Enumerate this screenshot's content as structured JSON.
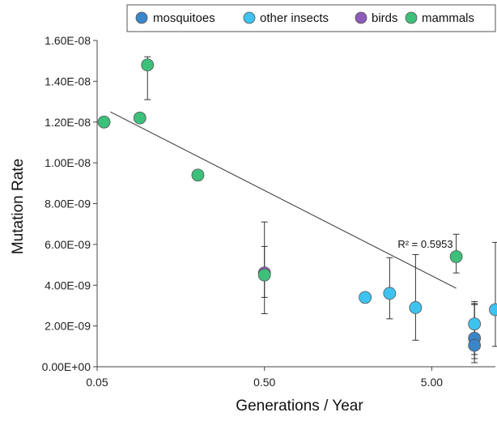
{
  "chart_data": {
    "type": "scatter",
    "xlabel": "Generations / Year",
    "ylabel": "Mutation Rate",
    "xscale": "log",
    "xlim": [
      0.05,
      12
    ],
    "ylim": [
      0,
      1.6e-08
    ],
    "x_ticks": [
      {
        "value": 0.05,
        "label": "0.05"
      },
      {
        "value": 0.5,
        "label": "0.50"
      },
      {
        "value": 5.0,
        "label": "5.00"
      }
    ],
    "y_ticks": [
      {
        "value": 0,
        "label": "0.00E+00"
      },
      {
        "value": 2e-09,
        "label": "2.00E-09"
      },
      {
        "value": 4e-09,
        "label": "4.00E-09"
      },
      {
        "value": 6e-09,
        "label": "6.00E-09"
      },
      {
        "value": 8e-09,
        "label": "8.00E-09"
      },
      {
        "value": 1e-08,
        "label": "1.00E-08"
      },
      {
        "value": 1.2e-08,
        "label": "1.20E-08"
      },
      {
        "value": 1.4e-08,
        "label": "1.40E-08"
      },
      {
        "value": 1.6e-08,
        "label": "1.60E-08"
      }
    ],
    "grid": false,
    "legend": "top",
    "series": [
      {
        "name": "mosquitoes",
        "color": "#3a86c8",
        "points": [
          {
            "x": 9.0,
            "y": 1.4e-09,
            "err_low": 1e-09,
            "err_high": 1.8e-09
          },
          {
            "x": 9.0,
            "y": 1.05e-09,
            "err_low": 8.5e-10,
            "err_high": 2e-09
          }
        ]
      },
      {
        "name": "other insects",
        "color": "#3ec3f0",
        "points": [
          {
            "x": 2.0,
            "y": 3.4e-09
          },
          {
            "x": 2.8,
            "y": 3.6e-09,
            "err_low": 1.25e-09,
            "err_high": 1.75e-09
          },
          {
            "x": 4.0,
            "y": 2.9e-09,
            "err_low": 1.6e-09,
            "err_high": 2.6e-09
          },
          {
            "x": 9.0,
            "y": 2.1e-09,
            "err_low": 1.5e-09,
            "err_high": 1e-09
          },
          {
            "x": 12.0,
            "y": 2.8e-09,
            "err_low": 1.8e-09,
            "err_high": 3.3e-09
          }
        ]
      },
      {
        "name": "birds",
        "color": "#8e5bb8",
        "points": [
          {
            "x": 0.5,
            "y": 4.6e-09,
            "err_low": 1.2e-09,
            "err_high": 1.3e-09
          }
        ]
      },
      {
        "name": "mammals",
        "color": "#3cc07a",
        "points": [
          {
            "x": 0.055,
            "y": 1.2e-08
          },
          {
            "x": 0.09,
            "y": 1.22e-08
          },
          {
            "x": 0.1,
            "y": 1.48e-08,
            "err_low": 1.7e-09,
            "err_high": 4e-10
          },
          {
            "x": 0.2,
            "y": 9.4e-09
          },
          {
            "x": 0.5,
            "y": 4.5e-09,
            "err_low": 1.9e-09,
            "err_high": 2.6e-09
          },
          {
            "x": 7.0,
            "y": 5.4e-09,
            "err_low": 8e-10,
            "err_high": 1.1e-09
          }
        ]
      }
    ],
    "trendline": {
      "x_start": 0.06,
      "y_start": 1.25e-08,
      "x_end": 7.0,
      "y_end": 3.85e-09
    },
    "annotations": [
      {
        "text": "R² = 0.5953",
        "x": 2.8,
        "y": 5.6e-09
      }
    ]
  }
}
